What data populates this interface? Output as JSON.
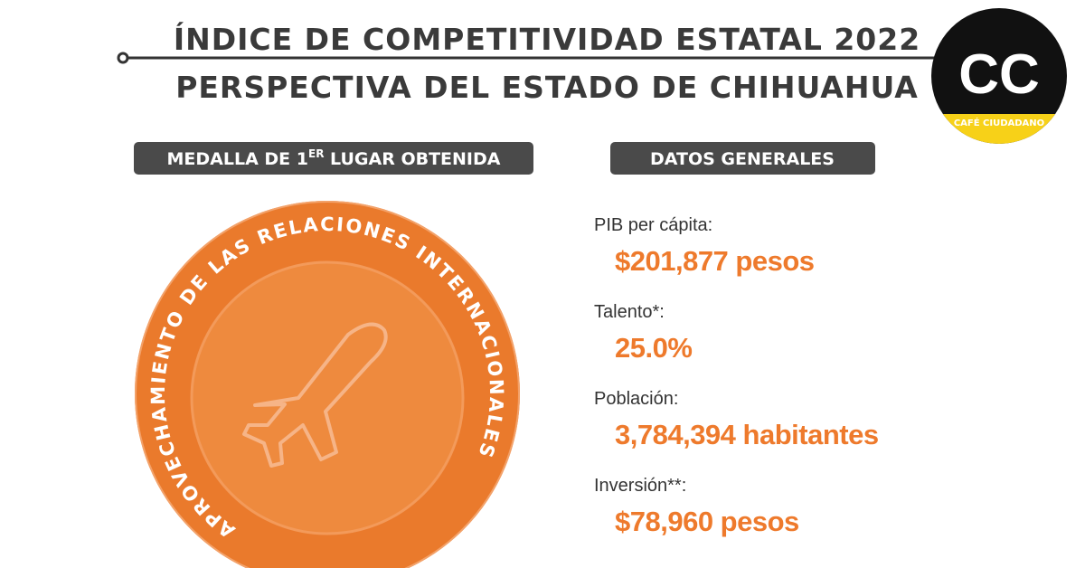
{
  "header": {
    "title_line1": "ÍNDICE DE COMPETITIVIDAD ESTATAL 2022",
    "title_line2": "PERSPECTIVA DEL ESTADO DE CHIHUAHUA"
  },
  "logo": {
    "letters": "CC",
    "tagline": "CAFÉ CIUDADANO"
  },
  "medal": {
    "heading_before": "MEDALLA  DE 1",
    "heading_sup": "ER",
    "heading_after": " LUGAR OBTENIDA",
    "ring_text": "APROVECHAMIENTO DE LAS RELACIONES INTERNACIONALES"
  },
  "general_data": {
    "heading": "DATOS GENERALES",
    "items": [
      {
        "label": "PIB per cápita:",
        "value": "$201,877 pesos"
      },
      {
        "label": "Talento*:",
        "value": "25.0%"
      },
      {
        "label": "Población:",
        "value": "3,784,394 habitantes"
      },
      {
        "label": "Inversión**:",
        "value": "$78,960 pesos"
      }
    ]
  }
}
